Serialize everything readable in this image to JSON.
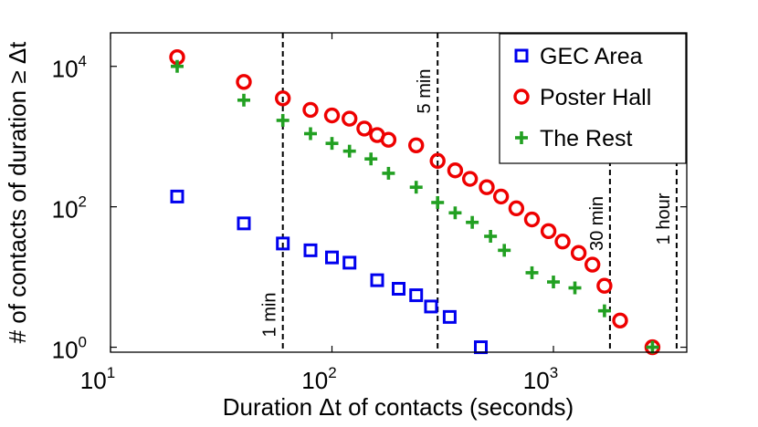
{
  "chart_data": {
    "type": "scatter",
    "title": "",
    "xlabel": "Duration Δt of contacts (seconds)",
    "ylabel": "# of contacts of duration ≥ Δt",
    "xscale": "log",
    "yscale": "log",
    "xlim": [
      10,
      4000
    ],
    "ylim": [
      0.85,
      30000
    ],
    "xticks": [
      {
        "value": 10,
        "base": "10",
        "exp": "1"
      },
      {
        "value": 100,
        "base": "10",
        "exp": "2"
      },
      {
        "value": 1000,
        "base": "10",
        "exp": "3"
      }
    ],
    "yticks": [
      {
        "value": 1,
        "base": "10",
        "exp": "0"
      },
      {
        "value": 100,
        "base": "10",
        "exp": "2"
      },
      {
        "value": 10000,
        "base": "10",
        "exp": "4"
      }
    ],
    "reference_lines": [
      {
        "x": 60,
        "label": "1 min"
      },
      {
        "x": 300,
        "label": "5 min"
      },
      {
        "x": 1800,
        "label": "30 min"
      },
      {
        "x": 3600,
        "label": "1 hour"
      }
    ],
    "legend_position": "top-right",
    "series": [
      {
        "name": "GEC Area",
        "marker": "square",
        "color": "#0000ee",
        "points": [
          [
            20,
            140
          ],
          [
            40,
            58
          ],
          [
            60,
            30
          ],
          [
            80,
            24
          ],
          [
            100,
            19
          ],
          [
            120,
            16
          ],
          [
            160,
            9
          ],
          [
            200,
            6.8
          ],
          [
            240,
            5.5
          ],
          [
            280,
            3.8
          ],
          [
            340,
            2.7
          ],
          [
            470,
            1
          ]
        ]
      },
      {
        "name": "Poster Hall",
        "marker": "circle",
        "color": "#ee0000",
        "points": [
          [
            20,
            13500
          ],
          [
            40,
            6000
          ],
          [
            60,
            3500
          ],
          [
            80,
            2400
          ],
          [
            100,
            2000
          ],
          [
            120,
            1800
          ],
          [
            140,
            1300
          ],
          [
            160,
            1050
          ],
          [
            180,
            900
          ],
          [
            240,
            750
          ],
          [
            300,
            450
          ],
          [
            360,
            330
          ],
          [
            420,
            250
          ],
          [
            500,
            190
          ],
          [
            580,
            140
          ],
          [
            680,
            95
          ],
          [
            800,
            66
          ],
          [
            950,
            45
          ],
          [
            1100,
            32
          ],
          [
            1300,
            22
          ],
          [
            1500,
            15
          ],
          [
            1700,
            7.5
          ],
          [
            2000,
            2.4
          ],
          [
            2800,
            1
          ]
        ]
      },
      {
        "name": "The Rest",
        "marker": "plus",
        "color": "#22a022",
        "points": [
          [
            20,
            10000
          ],
          [
            40,
            3300
          ],
          [
            60,
            1700
          ],
          [
            80,
            1100
          ],
          [
            100,
            800
          ],
          [
            120,
            620
          ],
          [
            150,
            480
          ],
          [
            180,
            300
          ],
          [
            240,
            190
          ],
          [
            300,
            115
          ],
          [
            360,
            82
          ],
          [
            430,
            60
          ],
          [
            520,
            38
          ],
          [
            600,
            24
          ],
          [
            800,
            11.5
          ],
          [
            1000,
            8.5
          ],
          [
            1250,
            7
          ],
          [
            1700,
            3.3
          ],
          [
            2800,
            1
          ]
        ]
      }
    ]
  }
}
